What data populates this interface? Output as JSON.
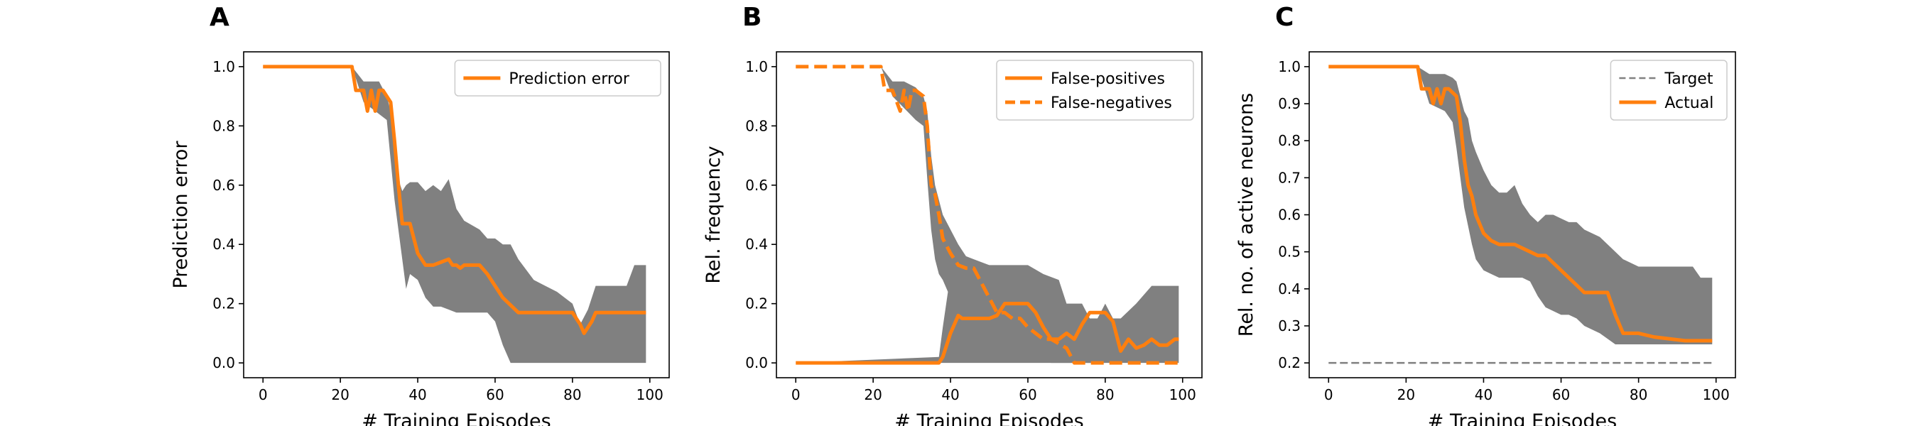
{
  "colors": {
    "accent": "#ff7f0e",
    "band": "#808080",
    "target": "#808080",
    "axis": "#000000"
  },
  "chart_data": [
    {
      "panel": "A",
      "type": "line",
      "xlabel": "# Training Episodes",
      "ylabel": "Prediction error",
      "xlim": [
        -5,
        105
      ],
      "ylim": [
        -0.05,
        1.05
      ],
      "xticks": [
        0,
        20,
        40,
        60,
        80,
        100
      ],
      "yticks": [
        0.0,
        0.2,
        0.4,
        0.6,
        0.8,
        1.0
      ],
      "ytick_labels": [
        "0.0",
        "0.2",
        "0.4",
        "0.6",
        "0.8",
        "1.0"
      ],
      "legend_position": "top-right",
      "grid": false,
      "series": [
        {
          "name": "Prediction error",
          "style": "solid",
          "x": [
            0,
            23,
            24,
            26,
            27,
            28,
            29,
            30,
            31,
            33,
            34,
            35,
            36,
            37,
            38,
            39,
            40,
            42,
            43,
            44,
            46,
            48,
            49,
            50,
            51,
            52,
            56,
            58,
            62,
            66,
            72,
            80,
            82,
            83,
            85,
            86,
            99
          ],
          "y": [
            1.0,
            1.0,
            0.92,
            0.92,
            0.85,
            0.92,
            0.85,
            0.92,
            0.92,
            0.88,
            0.75,
            0.6,
            0.47,
            0.47,
            0.47,
            0.42,
            0.37,
            0.33,
            0.33,
            0.33,
            0.34,
            0.35,
            0.33,
            0.33,
            0.32,
            0.33,
            0.33,
            0.3,
            0.22,
            0.17,
            0.17,
            0.17,
            0.13,
            0.1,
            0.14,
            0.17,
            0.17
          ]
        }
      ],
      "bands": [
        {
          "x": [
            0,
            23,
            26,
            30,
            32,
            34,
            35,
            36,
            37,
            38,
            40,
            42,
            44,
            46,
            48,
            50,
            52,
            56,
            58,
            60,
            62,
            64,
            66,
            70,
            76,
            80,
            82,
            84,
            86,
            90,
            94,
            96,
            99
          ],
          "lower": [
            1.0,
            1.0,
            0.88,
            0.84,
            0.82,
            0.55,
            0.45,
            0.35,
            0.25,
            0.3,
            0.28,
            0.22,
            0.19,
            0.19,
            0.18,
            0.17,
            0.17,
            0.17,
            0.17,
            0.14,
            0.06,
            0.0,
            0.0,
            0.0,
            0.0,
            0.0,
            0.0,
            0.0,
            0.0,
            0.0,
            0.0,
            0.0,
            0.0
          ],
          "upper": [
            1.0,
            1.0,
            0.95,
            0.95,
            0.9,
            0.8,
            0.62,
            0.58,
            0.6,
            0.61,
            0.61,
            0.58,
            0.6,
            0.58,
            0.62,
            0.52,
            0.48,
            0.45,
            0.42,
            0.42,
            0.4,
            0.4,
            0.35,
            0.28,
            0.24,
            0.2,
            0.13,
            0.18,
            0.26,
            0.26,
            0.26,
            0.33,
            0.33
          ]
        }
      ]
    },
    {
      "panel": "B",
      "type": "line",
      "xlabel": "# Training Episodes",
      "ylabel": "Rel. frequency",
      "xlim": [
        -5,
        105
      ],
      "ylim": [
        -0.05,
        1.05
      ],
      "xticks": [
        0,
        20,
        40,
        60,
        80,
        100
      ],
      "yticks": [
        0.0,
        0.2,
        0.4,
        0.6,
        0.8,
        1.0
      ],
      "ytick_labels": [
        "0.0",
        "0.2",
        "0.4",
        "0.6",
        "0.8",
        "1.0"
      ],
      "legend_position": "top-right",
      "grid": false,
      "series": [
        {
          "name": "False-positives",
          "style": "solid",
          "x": [
            0,
            37,
            38,
            39,
            40,
            42,
            43,
            44,
            48,
            50,
            52,
            54,
            56,
            60,
            62,
            64,
            66,
            68,
            70,
            72,
            74,
            76,
            78,
            80,
            82,
            84,
            86,
            88,
            90,
            92,
            94,
            96,
            98,
            99
          ],
          "y": [
            0.0,
            0.0,
            0.02,
            0.06,
            0.1,
            0.16,
            0.15,
            0.15,
            0.15,
            0.15,
            0.16,
            0.2,
            0.2,
            0.2,
            0.17,
            0.12,
            0.08,
            0.08,
            0.1,
            0.08,
            0.13,
            0.17,
            0.17,
            0.17,
            0.14,
            0.04,
            0.08,
            0.05,
            0.06,
            0.08,
            0.06,
            0.06,
            0.08,
            0.08
          ]
        },
        {
          "name": "False-negatives",
          "style": "dashed",
          "x": [
            0,
            22,
            23,
            25,
            27,
            28,
            29,
            30,
            31,
            33,
            34,
            35,
            36,
            37,
            38,
            40,
            42,
            44,
            46,
            48,
            50,
            52,
            54,
            56,
            58,
            60,
            62,
            64,
            66,
            70,
            72,
            74,
            76,
            80,
            99
          ],
          "y": [
            1.0,
            1.0,
            0.92,
            0.92,
            0.85,
            0.92,
            0.85,
            0.92,
            0.92,
            0.9,
            0.8,
            0.6,
            0.57,
            0.5,
            0.42,
            0.37,
            0.33,
            0.32,
            0.32,
            0.27,
            0.22,
            0.17,
            0.17,
            0.15,
            0.15,
            0.12,
            0.1,
            0.08,
            0.08,
            0.05,
            0.0,
            0.0,
            0.0,
            0.0,
            0.0
          ]
        }
      ],
      "bands": [
        {
          "x": [
            0,
            37,
            38,
            40,
            42,
            44,
            46,
            50,
            56,
            60,
            64,
            68,
            70,
            74,
            76,
            78,
            80,
            82,
            84,
            88,
            92,
            96,
            99
          ],
          "lower": [
            0.0,
            0.0,
            0.0,
            0.0,
            0.0,
            0.0,
            0.0,
            0.0,
            0.0,
            0.0,
            0.0,
            0.0,
            0.0,
            0.0,
            0.0,
            0.0,
            0.0,
            0.0,
            0.0,
            0.0,
            0.0,
            0.0,
            0.0
          ],
          "upper": [
            0.0,
            0.02,
            0.12,
            0.3,
            0.32,
            0.35,
            0.33,
            0.33,
            0.33,
            0.33,
            0.3,
            0.28,
            0.2,
            0.2,
            0.15,
            0.15,
            0.2,
            0.15,
            0.15,
            0.2,
            0.26,
            0.26,
            0.26
          ]
        },
        {
          "x": [
            0,
            22,
            25,
            28,
            31,
            33,
            34,
            35,
            36,
            37,
            38,
            40,
            42,
            44,
            46,
            50,
            54,
            58,
            62,
            66,
            70,
            74,
            76,
            80,
            99
          ],
          "lower": [
            1.0,
            1.0,
            0.9,
            0.86,
            0.82,
            0.8,
            0.62,
            0.45,
            0.35,
            0.3,
            0.28,
            0.22,
            0.2,
            0.18,
            0.16,
            0.12,
            0.08,
            0.05,
            0.03,
            0.0,
            0.0,
            0.0,
            0.0,
            0.0,
            0.0
          ],
          "upper": [
            1.0,
            1.0,
            0.95,
            0.95,
            0.93,
            0.9,
            0.85,
            0.7,
            0.6,
            0.55,
            0.5,
            0.45,
            0.4,
            0.36,
            0.35,
            0.33,
            0.32,
            0.3,
            0.25,
            0.2,
            0.15,
            0.1,
            0.05,
            0.0,
            0.0
          ]
        }
      ]
    },
    {
      "panel": "C",
      "type": "line",
      "xlabel": "# Training Episodes",
      "ylabel": "Rel. no. of active neurons",
      "xlim": [
        -5,
        105
      ],
      "ylim": [
        0.16,
        1.04
      ],
      "xticks": [
        0,
        20,
        40,
        60,
        80,
        100
      ],
      "yticks": [
        0.2,
        0.3,
        0.4,
        0.5,
        0.6,
        0.7,
        0.8,
        0.9,
        1.0
      ],
      "ytick_labels": [
        "0.2",
        "0.3",
        "0.4",
        "0.5",
        "0.6",
        "0.7",
        "0.8",
        "0.9",
        "1.0"
      ],
      "legend_position": "top-right",
      "grid": false,
      "series": [
        {
          "name": "Target",
          "style": "dashed-thin",
          "x": [
            0,
            99
          ],
          "y": [
            0.2,
            0.2
          ]
        },
        {
          "name": "Actual",
          "style": "solid",
          "x": [
            0,
            23,
            24,
            26,
            27,
            28,
            29,
            30,
            31,
            33,
            34,
            35,
            36,
            37,
            38,
            40,
            42,
            44,
            46,
            48,
            50,
            52,
            54,
            56,
            58,
            60,
            62,
            64,
            66,
            68,
            70,
            72,
            74,
            76,
            80,
            84,
            88,
            92,
            96,
            99
          ],
          "y": [
            1.0,
            1.0,
            0.94,
            0.94,
            0.9,
            0.94,
            0.9,
            0.94,
            0.94,
            0.92,
            0.85,
            0.75,
            0.68,
            0.65,
            0.6,
            0.55,
            0.53,
            0.52,
            0.52,
            0.52,
            0.51,
            0.5,
            0.49,
            0.49,
            0.47,
            0.45,
            0.43,
            0.41,
            0.39,
            0.39,
            0.39,
            0.39,
            0.33,
            0.28,
            0.28,
            0.27,
            0.265,
            0.26,
            0.26,
            0.26
          ]
        }
      ],
      "bands": [
        {
          "x": [
            0,
            23,
            26,
            30,
            32,
            33,
            34,
            35,
            36,
            37,
            38,
            40,
            42,
            44,
            46,
            48,
            50,
            52,
            54,
            56,
            58,
            60,
            62,
            64,
            66,
            70,
            74,
            76,
            80,
            84,
            88,
            90,
            92,
            94,
            96,
            99
          ],
          "lower": [
            1.0,
            1.0,
            0.9,
            0.88,
            0.85,
            0.78,
            0.7,
            0.62,
            0.57,
            0.52,
            0.48,
            0.45,
            0.44,
            0.43,
            0.43,
            0.43,
            0.43,
            0.42,
            0.38,
            0.35,
            0.34,
            0.33,
            0.33,
            0.32,
            0.3,
            0.28,
            0.25,
            0.25,
            0.25,
            0.25,
            0.25,
            0.25,
            0.25,
            0.25,
            0.25,
            0.25
          ],
          "upper": [
            1.0,
            1.0,
            0.98,
            0.98,
            0.97,
            0.96,
            0.92,
            0.88,
            0.86,
            0.8,
            0.77,
            0.72,
            0.68,
            0.66,
            0.66,
            0.68,
            0.63,
            0.6,
            0.58,
            0.6,
            0.6,
            0.59,
            0.58,
            0.58,
            0.56,
            0.54,
            0.5,
            0.48,
            0.46,
            0.46,
            0.46,
            0.46,
            0.46,
            0.46,
            0.43,
            0.43
          ]
        }
      ]
    }
  ]
}
